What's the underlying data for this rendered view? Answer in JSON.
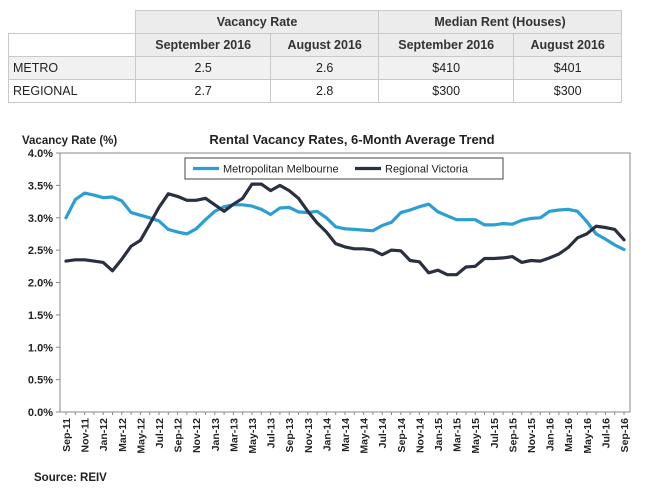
{
  "table": {
    "groups": [
      "Vacancy Rate",
      "Median Rent (Houses)"
    ],
    "months": [
      "September 2016",
      "August 2016",
      "September 2016",
      "August 2016"
    ],
    "rows": [
      {
        "label": "METRO",
        "cells": [
          "2.5",
          "2.6",
          "$410",
          "$401"
        ]
      },
      {
        "label": "REGIONAL",
        "cells": [
          "2.7",
          "2.8",
          "$300",
          "$300"
        ]
      }
    ]
  },
  "source": "Source:  REIV",
  "chart_data": {
    "type": "line",
    "title": "Rental Vacancy Rates, 6-Month Average Trend",
    "ylabel": "Vacancy Rate (%)",
    "xlabel": "",
    "ylim": [
      0.0,
      4.0
    ],
    "y_ticks": [
      "0.0%",
      "0.5%",
      "1.0%",
      "1.5%",
      "2.0%",
      "2.5%",
      "3.0%",
      "3.5%",
      "4.0%"
    ],
    "x_tick_labels": [
      "Sep-11",
      "Nov-11",
      "Jan-12",
      "Mar-12",
      "May-12",
      "Jul-12",
      "Sep-12",
      "Nov-12",
      "Jan-13",
      "Mar-13",
      "May-13",
      "Jul-13",
      "Sep-13",
      "Nov-13",
      "Jan-14",
      "Mar-14",
      "May-14",
      "Jul-14",
      "Sep-14",
      "Nov-14",
      "Jan-15",
      "Mar-15",
      "May-15",
      "Jul-15",
      "Sep-15",
      "Nov-15",
      "Jan-16",
      "Mar-16",
      "May-16",
      "Jul-16",
      "Sep-16"
    ],
    "x": [
      "Sep-11",
      "Oct-11",
      "Nov-11",
      "Dec-11",
      "Jan-12",
      "Feb-12",
      "Mar-12",
      "Apr-12",
      "May-12",
      "Jun-12",
      "Jul-12",
      "Aug-12",
      "Sep-12",
      "Oct-12",
      "Nov-12",
      "Dec-12",
      "Jan-13",
      "Feb-13",
      "Mar-13",
      "Apr-13",
      "May-13",
      "Jun-13",
      "Jul-13",
      "Aug-13",
      "Sep-13",
      "Oct-13",
      "Nov-13",
      "Dec-13",
      "Jan-14",
      "Feb-14",
      "Mar-14",
      "Apr-14",
      "May-14",
      "Jun-14",
      "Jul-14",
      "Aug-14",
      "Sep-14",
      "Oct-14",
      "Nov-14",
      "Dec-14",
      "Jan-15",
      "Feb-15",
      "Mar-15",
      "Apr-15",
      "May-15",
      "Jun-15",
      "Jul-15",
      "Aug-15",
      "Sep-15",
      "Oct-15",
      "Nov-15",
      "Dec-15",
      "Jan-16",
      "Feb-16",
      "Mar-16",
      "Apr-16",
      "May-16",
      "Jun-16",
      "Jul-16",
      "Aug-16",
      "Sep-16"
    ],
    "series": [
      {
        "name": "Metropolitan Melbourne",
        "color": "#2b9fd4",
        "values": [
          3.0,
          3.28,
          3.38,
          3.35,
          3.31,
          3.32,
          3.26,
          3.08,
          3.04,
          3.0,
          2.95,
          2.82,
          2.78,
          2.75,
          2.83,
          2.97,
          3.1,
          3.17,
          3.2,
          3.2,
          3.18,
          3.13,
          3.05,
          3.15,
          3.16,
          3.09,
          3.08,
          3.1,
          3.0,
          2.86,
          2.83,
          2.82,
          2.81,
          2.8,
          2.88,
          2.93,
          3.08,
          3.12,
          3.17,
          3.21,
          3.09,
          3.03,
          2.97,
          2.97,
          2.97,
          2.89,
          2.89,
          2.91,
          2.9,
          2.96,
          2.99,
          3.0,
          3.1,
          3.12,
          3.13,
          3.1,
          2.94,
          2.75,
          2.67,
          2.58,
          2.51
        ]
      },
      {
        "name": "Regional Victoria",
        "color": "#2a3040",
        "values": [
          2.33,
          2.35,
          2.35,
          2.33,
          2.31,
          2.18,
          2.36,
          2.56,
          2.65,
          2.9,
          3.16,
          3.37,
          3.33,
          3.27,
          3.27,
          3.3,
          3.2,
          3.1,
          3.21,
          3.3,
          3.52,
          3.52,
          3.42,
          3.5,
          3.42,
          3.3,
          3.1,
          2.92,
          2.78,
          2.6,
          2.55,
          2.52,
          2.52,
          2.5,
          2.43,
          2.5,
          2.49,
          2.34,
          2.32,
          2.15,
          2.19,
          2.12,
          2.12,
          2.24,
          2.25,
          2.37,
          2.37,
          2.38,
          2.4,
          2.31,
          2.34,
          2.33,
          2.38,
          2.44,
          2.54,
          2.69,
          2.75,
          2.87,
          2.85,
          2.82,
          2.66
        ]
      }
    ],
    "legend_position": "top-center",
    "grid": false
  }
}
